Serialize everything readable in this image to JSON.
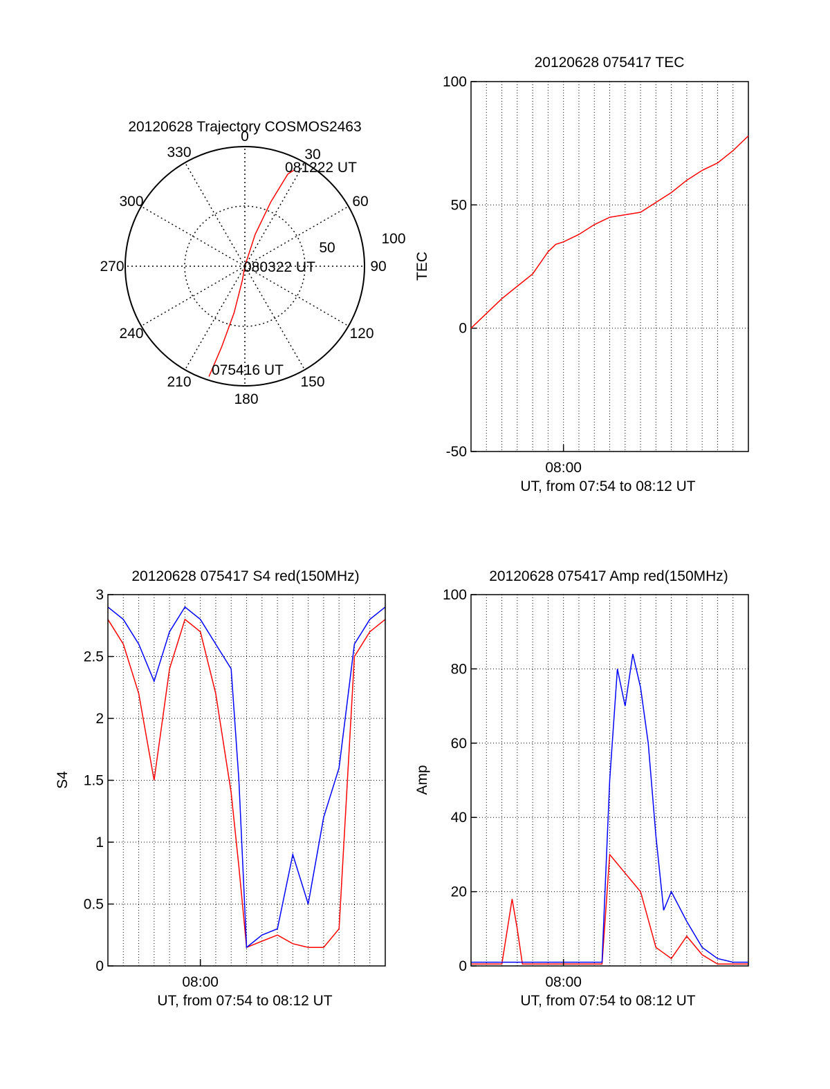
{
  "chart_data": [
    {
      "type": "polar",
      "title": "20120628 Trajectory COSMOS2463",
      "angle_labels": [
        "0",
        "30",
        "60",
        "90",
        "120",
        "150",
        "180",
        "210",
        "240",
        "270",
        "300",
        "330"
      ],
      "radial_labels": [
        "50",
        "100"
      ],
      "rmax": 100,
      "grid": true,
      "series": [
        {
          "color": "#ff0000",
          "points": [
            {
              "az": 198,
              "r": 97
            },
            {
              "az": 196,
              "r": 70
            },
            {
              "az": 193,
              "r": 40
            },
            {
              "az": 190,
              "r": 12
            },
            {
              "az": 0,
              "r": 0
            },
            {
              "az": 18,
              "r": 28
            },
            {
              "az": 22,
              "r": 58
            },
            {
              "az": 25,
              "r": 85
            },
            {
              "az": 27,
              "r": 90
            }
          ]
        }
      ],
      "annotations": [
        {
          "text": "081222 UT",
          "az": 27,
          "r": 90
        },
        {
          "text": "080322 UT",
          "az": 0,
          "r": 0
        },
        {
          "text": "075416 UT",
          "az": 198,
          "r": 97
        }
      ]
    },
    {
      "type": "line",
      "title": "20120628 075417 TEC",
      "xlabel": "UT, from 07:54 to 08:12 UT",
      "ylabel": "TEC",
      "xlim": [
        "07:54",
        "08:12"
      ],
      "ylim": [
        -50,
        100
      ],
      "xticks": [
        "08:00"
      ],
      "yticks": [
        -50,
        0,
        50,
        100
      ],
      "grid": true,
      "series": [
        {
          "color": "#ff0000",
          "x": [
            "07:54:00",
            "07:55:00",
            "07:56:00",
            "07:57:00",
            "07:58:00",
            "07:59:00",
            "07:59:30",
            "08:00:00",
            "08:01:00",
            "08:02:00",
            "08:03:00",
            "08:04:00",
            "08:05:00",
            "08:06:00",
            "08:07:00",
            "08:08:00",
            "08:09:00",
            "08:10:00",
            "08:11:00",
            "08:12:00"
          ],
          "y": [
            0,
            6,
            12,
            17,
            22,
            31,
            34,
            35,
            38,
            42,
            45,
            46,
            47,
            51,
            55,
            60,
            64,
            67,
            72,
            78
          ]
        }
      ]
    },
    {
      "type": "line",
      "title": "20120628 075417 S4 red(150MHz)",
      "xlabel": "UT, from 07:54 to 08:12 UT",
      "ylabel": "S4",
      "xlim": [
        "07:54",
        "08:12"
      ],
      "ylim": [
        0,
        3
      ],
      "xticks": [
        "08:00"
      ],
      "yticks": [
        0,
        0.5,
        1,
        1.5,
        2,
        2.5,
        3
      ],
      "grid": true,
      "series": [
        {
          "color": "#ff0000",
          "x": [
            "07:54:00",
            "07:55:00",
            "07:56:00",
            "07:57:00",
            "07:58:00",
            "07:59:00",
            "08:00:00",
            "08:01:00",
            "08:02:00",
            "08:02:30",
            "08:03:00",
            "08:04:00",
            "08:05:00",
            "08:06:00",
            "08:07:00",
            "08:08:00",
            "08:09:00",
            "08:10:00",
            "08:11:00",
            "08:12:00"
          ],
          "y": [
            2.8,
            2.6,
            2.2,
            1.5,
            2.4,
            2.8,
            2.7,
            2.2,
            1.4,
            0.8,
            0.15,
            0.2,
            0.25,
            0.18,
            0.15,
            0.15,
            0.3,
            2.5,
            2.7,
            2.8
          ]
        },
        {
          "color": "#0000ff",
          "x": [
            "07:54:00",
            "07:55:00",
            "07:56:00",
            "07:57:00",
            "07:58:00",
            "07:59:00",
            "08:00:00",
            "08:01:00",
            "08:02:00",
            "08:02:30",
            "08:03:00",
            "08:04:00",
            "08:05:00",
            "08:06:00",
            "08:07:00",
            "08:08:00",
            "08:09:00",
            "08:10:00",
            "08:11:00",
            "08:12:00"
          ],
          "y": [
            2.9,
            2.8,
            2.6,
            2.3,
            2.7,
            2.9,
            2.8,
            2.6,
            2.4,
            1.5,
            0.15,
            0.25,
            0.3,
            0.9,
            0.5,
            1.2,
            1.6,
            2.6,
            2.8,
            2.9
          ]
        }
      ]
    },
    {
      "type": "line",
      "title": "20120628 075417 Amp red(150MHz)",
      "xlabel": "UT, from 07:54 to 08:12 UT",
      "ylabel": "Amp",
      "xlim": [
        "07:54",
        "08:12"
      ],
      "ylim": [
        0,
        100
      ],
      "xticks": [
        "08:00"
      ],
      "yticks": [
        0,
        20,
        40,
        60,
        80,
        100
      ],
      "grid": true,
      "series": [
        {
          "color": "#ff0000",
          "x": [
            "07:54:00",
            "07:56:00",
            "07:56:40",
            "07:57:00",
            "07:57:20",
            "08:00:00",
            "08:02:30",
            "08:03:00",
            "08:04:00",
            "08:05:00",
            "08:06:00",
            "08:07:00",
            "08:08:00",
            "08:09:00",
            "08:10:00",
            "08:12:00"
          ],
          "y": [
            0.5,
            0.5,
            18,
            10,
            0.5,
            0.5,
            0.5,
            30,
            25,
            20,
            5,
            2,
            8,
            3,
            0.5,
            0.5
          ]
        },
        {
          "color": "#0000ff",
          "x": [
            "07:54:00",
            "07:56:00",
            "07:58:00",
            "08:00:00",
            "08:02:00",
            "08:02:30",
            "08:03:00",
            "08:03:30",
            "08:04:00",
            "08:04:30",
            "08:05:00",
            "08:05:30",
            "08:06:00",
            "08:06:30",
            "08:07:00",
            "08:08:00",
            "08:09:00",
            "08:10:00",
            "08:11:00",
            "08:12:00"
          ],
          "y": [
            1,
            1,
            1,
            1,
            1,
            1,
            50,
            80,
            70,
            84,
            75,
            60,
            35,
            15,
            20,
            12,
            5,
            2,
            1,
            1
          ]
        }
      ]
    }
  ]
}
